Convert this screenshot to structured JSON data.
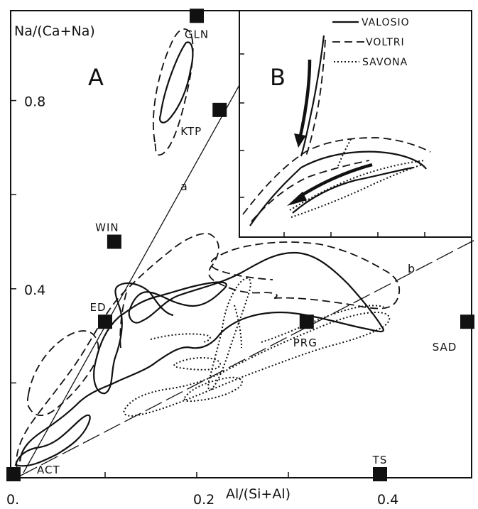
{
  "chart_data": {
    "type": "scatter",
    "panel_a_label": "A",
    "panel_b_label": "B",
    "ylabel": "Na/(Ca+Na)",
    "xlabel": "Al/(Si+Al)",
    "x_ticks": [
      {
        "value": 0.0,
        "label": "0."
      },
      {
        "value": 0.2,
        "label": "0.2"
      },
      {
        "value": 0.4,
        "label": "0.4"
      }
    ],
    "y_ticks": [
      {
        "value": 0.4,
        "label": "0.4"
      },
      {
        "value": 0.8,
        "label": "0.8"
      }
    ],
    "xlim": [
      0.0,
      0.5
    ],
    "ylim": [
      0.0,
      0.98
    ],
    "end_members": [
      {
        "label": "GLN",
        "x": 0.2,
        "y": 0.98
      },
      {
        "label": "KTP",
        "x": 0.225,
        "y": 0.78
      },
      {
        "label": "WIN",
        "x": 0.11,
        "y": 0.5
      },
      {
        "label": "ED",
        "x": 0.1,
        "y": 0.33
      },
      {
        "label": "PRG",
        "x": 0.32,
        "y": 0.33
      },
      {
        "label": "SAD",
        "x": 0.5,
        "y": 0.33
      },
      {
        "label": "ACT",
        "x": 0.0,
        "y": 0.0
      },
      {
        "label": "TS",
        "x": 0.4,
        "y": 0.0
      }
    ],
    "trend_lines": [
      {
        "label": "a"
      },
      {
        "label": "b"
      }
    ],
    "legend": {
      "position": "top-right",
      "entries": [
        "VALOSIO",
        "VOLTRI",
        "SAVONA"
      ]
    }
  }
}
